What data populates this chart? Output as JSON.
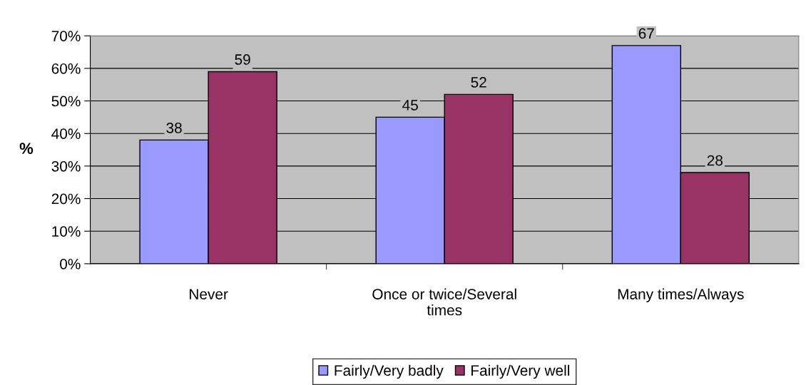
{
  "chart_data": {
    "type": "bar",
    "ylabel": "%",
    "categories": [
      "Never",
      "Once or twice/Several times",
      "Many times/Always"
    ],
    "series": [
      {
        "name": "Fairly/Very badly",
        "color": "#9999ff",
        "values": [
          38,
          45,
          67
        ]
      },
      {
        "name": "Fairly/Very well",
        "color": "#993366",
        "values": [
          59,
          52,
          28
        ]
      }
    ],
    "ylim": [
      0,
      70
    ],
    "yticks": [
      {
        "value": 0,
        "label": "0%"
      },
      {
        "value": 10,
        "label": "10%"
      },
      {
        "value": 20,
        "label": "20%"
      },
      {
        "value": 30,
        "label": "30%"
      },
      {
        "value": 40,
        "label": "40%"
      },
      {
        "value": 50,
        "label": "50%"
      },
      {
        "value": 60,
        "label": "60%"
      },
      {
        "value": 70,
        "label": "70%"
      }
    ],
    "grid": "y",
    "legend": "bottom",
    "data_labels": true
  }
}
